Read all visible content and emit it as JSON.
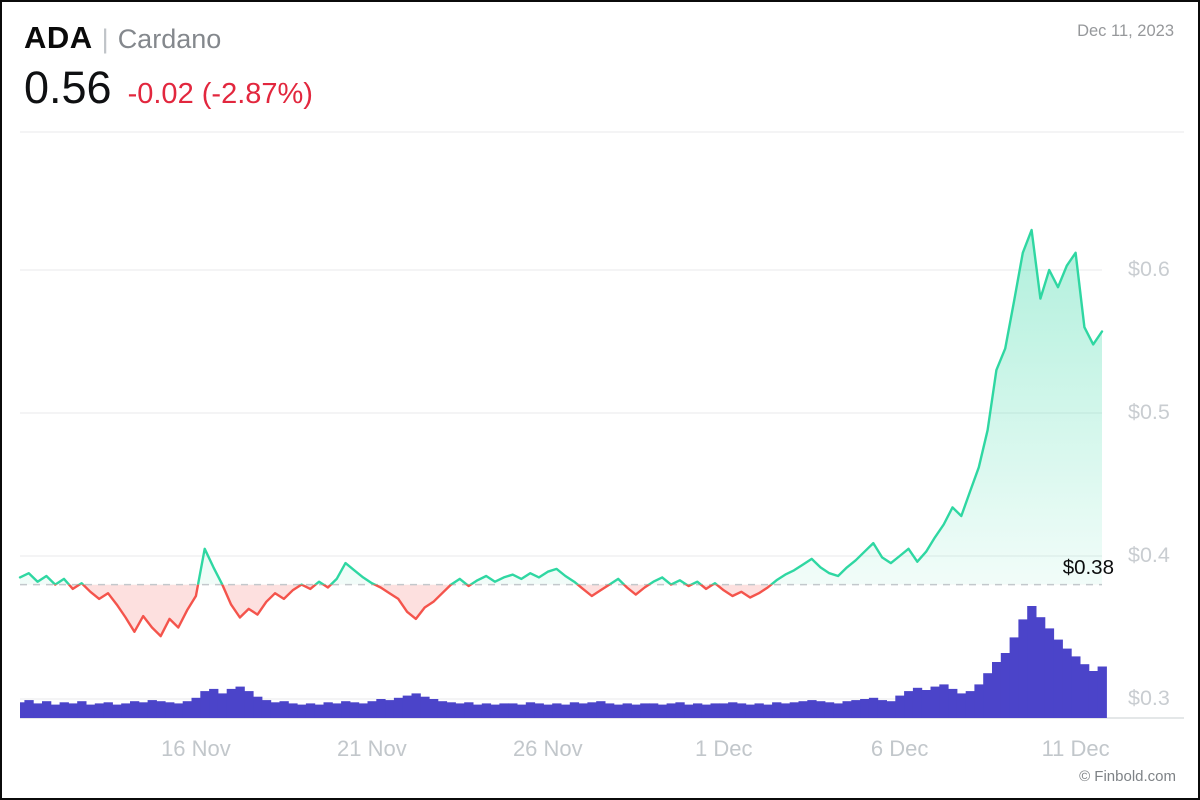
{
  "header": {
    "symbol": "ADA",
    "separator": "|",
    "name": "Cardano",
    "date": "Dec 11, 2023",
    "price": "0.56",
    "change": "-0.02 (-2.87%)"
  },
  "watermark": "© Finbold.com",
  "colors": {
    "up": "#2fd7a2",
    "down": "#f4544c",
    "down_fill": "rgba(244,84,76,0.18)",
    "volume": "#4b44c9",
    "change_text": "#e2273e",
    "grid": "#e9eaeb"
  },
  "chart_data": {
    "type": "line",
    "title": "ADA | Cardano price",
    "x_range": [
      "11 Nov 2023",
      "11 Dec 2023"
    ],
    "points_per_day": 4,
    "x_tick_labels": [
      "16 Nov",
      "21 Nov",
      "26 Nov",
      "1 Dec",
      "6 Dec",
      "11 Dec"
    ],
    "x_tick_point_indices": [
      20,
      40,
      60,
      80,
      100,
      120
    ],
    "y_ticks": [
      0.6,
      0.5,
      0.4,
      0.3
    ],
    "y_tick_labels": [
      "$0.6",
      "$0.5",
      "$0.4",
      "$0.3"
    ],
    "ylim": [
      0.295,
      0.71
    ],
    "grid": "horizontal",
    "baseline": 0.38,
    "baseline_label": "$0.38",
    "series": [
      {
        "name": "ADA price (USD)",
        "type": "line",
        "values": [
          0.385,
          0.388,
          0.382,
          0.386,
          0.38,
          0.384,
          0.377,
          0.381,
          0.375,
          0.37,
          0.374,
          0.366,
          0.357,
          0.347,
          0.358,
          0.35,
          0.344,
          0.356,
          0.35,
          0.362,
          0.372,
          0.405,
          0.392,
          0.38,
          0.366,
          0.357,
          0.363,
          0.359,
          0.368,
          0.374,
          0.37,
          0.376,
          0.38,
          0.377,
          0.382,
          0.378,
          0.384,
          0.395,
          0.39,
          0.385,
          0.381,
          0.378,
          0.374,
          0.37,
          0.361,
          0.356,
          0.364,
          0.368,
          0.374,
          0.38,
          0.384,
          0.379,
          0.383,
          0.386,
          0.382,
          0.385,
          0.387,
          0.384,
          0.388,
          0.385,
          0.389,
          0.391,
          0.386,
          0.382,
          0.377,
          0.372,
          0.376,
          0.38,
          0.384,
          0.378,
          0.373,
          0.378,
          0.382,
          0.385,
          0.38,
          0.383,
          0.379,
          0.382,
          0.377,
          0.381,
          0.376,
          0.372,
          0.375,
          0.371,
          0.374,
          0.378,
          0.383,
          0.387,
          0.39,
          0.394,
          0.398,
          0.392,
          0.388,
          0.386,
          0.392,
          0.397,
          0.403,
          0.409,
          0.399,
          0.395,
          0.4,
          0.405,
          0.396,
          0.403,
          0.413,
          0.422,
          0.434,
          0.428,
          0.445,
          0.462,
          0.488,
          0.53,
          0.545,
          0.578,
          0.612,
          0.628,
          0.58,
          0.6,
          0.588,
          0.603,
          0.612,
          0.56,
          0.548,
          0.557
        ]
      },
      {
        "name": "Volume (relative)",
        "type": "bar",
        "values": [
          14,
          16,
          13,
          15,
          12,
          14,
          13,
          15,
          12,
          13,
          14,
          12,
          13,
          15,
          14,
          16,
          15,
          14,
          13,
          15,
          18,
          24,
          26,
          22,
          26,
          28,
          24,
          19,
          16,
          14,
          15,
          13,
          12,
          13,
          12,
          14,
          13,
          15,
          14,
          13,
          15,
          17,
          16,
          18,
          20,
          22,
          19,
          17,
          15,
          14,
          13,
          14,
          12,
          13,
          12,
          13,
          13,
          12,
          14,
          13,
          12,
          13,
          12,
          14,
          13,
          14,
          15,
          13,
          12,
          13,
          12,
          13,
          13,
          12,
          13,
          14,
          12,
          13,
          12,
          13,
          13,
          14,
          13,
          12,
          13,
          12,
          14,
          13,
          14,
          15,
          16,
          15,
          14,
          13,
          15,
          16,
          17,
          18,
          16,
          15,
          20,
          24,
          27,
          25,
          28,
          30,
          26,
          22,
          24,
          30,
          40,
          50,
          58,
          72,
          88,
          100,
          90,
          80,
          70,
          62,
          55,
          48,
          42,
          46
        ]
      }
    ]
  }
}
